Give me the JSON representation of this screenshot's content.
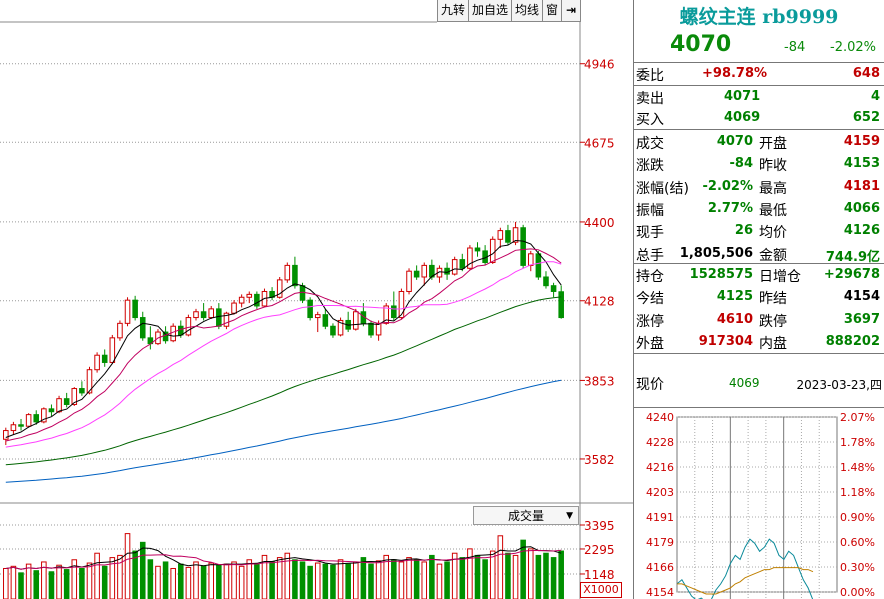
{
  "toolbar": {
    "buttons": [
      "九转",
      "加自选",
      "均线",
      "窗"
    ],
    "exit_icon": "exit-arrow-icon"
  },
  "volume_indicator": {
    "label": "成交量",
    "multiplier": "X1000"
  },
  "panel": {
    "title": "螺纹主连 rb9999",
    "price": "4070",
    "change": "-84",
    "change_pct": "-2.02%",
    "weibi": {
      "label": "委比",
      "value": "+98.78%",
      "diff": "648"
    },
    "sell": {
      "label": "卖出",
      "price": "4071",
      "qty": "4"
    },
    "buy": {
      "label": "买入",
      "price": "4069",
      "qty": "652"
    },
    "stats": [
      {
        "l1": "成交",
        "v1": "4070",
        "c1": "green",
        "l2": "开盘",
        "v2": "4159",
        "c2": "red"
      },
      {
        "l1": "涨跌",
        "v1": "-84",
        "c1": "green",
        "l2": "昨收",
        "v2": "4153",
        "c2": "green"
      },
      {
        "l1": "涨幅(结)",
        "v1": "-2.02%",
        "c1": "green",
        "l2": "最高",
        "v2": "4181",
        "c2": "red"
      },
      {
        "l1": "振幅",
        "v1": "2.77%",
        "c1": "green",
        "l2": "最低",
        "v2": "4066",
        "c2": "green"
      },
      {
        "l1": "现手",
        "v1": "26",
        "c1": "green",
        "l2": "均价",
        "v2": "4126",
        "c2": "green"
      },
      {
        "l1": "总手",
        "v1": "1,805,506",
        "c1": "black",
        "l2": "金额",
        "v2": "744.9亿",
        "c2": "green"
      }
    ],
    "stats2": [
      {
        "l1": "持仓",
        "v1": "1528575",
        "c1": "green",
        "l2": "日增仓",
        "v2": "+29678",
        "c2": "green"
      },
      {
        "l1": "今结",
        "v1": "4125",
        "c1": "green",
        "l2": "昨结",
        "v2": "4154",
        "c2": "black"
      },
      {
        "l1": "涨停",
        "v1": "4610",
        "c1": "red",
        "l2": "跌停",
        "v2": "3697",
        "c2": "green"
      },
      {
        "l1": "外盘",
        "v1": "917304",
        "c1": "red",
        "l2": "内盘",
        "v2": "888202",
        "c2": "green"
      }
    ],
    "current": {
      "label": "现价",
      "value": "4069",
      "date": "2023-03-23,四"
    }
  },
  "chart_data": [
    {
      "type": "candlestick",
      "y_ticks": [
        "4946",
        "4675",
        "4400",
        "4128",
        "3853",
        "3582"
      ],
      "ylim": [
        3430,
        5090
      ],
      "ohlc": [
        [
          3650,
          3690,
          3630,
          3680
        ],
        [
          3680,
          3710,
          3665,
          3700
        ],
        [
          3700,
          3720,
          3680,
          3695
        ],
        [
          3695,
          3740,
          3690,
          3735
        ],
        [
          3735,
          3750,
          3700,
          3710
        ],
        [
          3710,
          3760,
          3705,
          3755
        ],
        [
          3755,
          3770,
          3730,
          3745
        ],
        [
          3745,
          3800,
          3740,
          3790
        ],
        [
          3790,
          3810,
          3760,
          3770
        ],
        [
          3770,
          3830,
          3765,
          3825
        ],
        [
          3825,
          3850,
          3800,
          3810
        ],
        [
          3810,
          3900,
          3805,
          3890
        ],
        [
          3890,
          3950,
          3880,
          3940
        ],
        [
          3940,
          3960,
          3900,
          3915
        ],
        [
          3915,
          4010,
          3910,
          4000
        ],
        [
          4000,
          4060,
          3990,
          4050
        ],
        [
          4050,
          4140,
          4040,
          4130
        ],
        [
          4130,
          4145,
          4060,
          4070
        ],
        [
          4070,
          4090,
          3990,
          4000
        ],
        [
          4000,
          4040,
          3960,
          3980
        ],
        [
          3980,
          4030,
          3975,
          4020
        ],
        [
          4020,
          4040,
          3980,
          3990
        ],
        [
          3990,
          4050,
          3985,
          4040
        ],
        [
          4040,
          4060,
          4000,
          4010
        ],
        [
          4010,
          4080,
          4005,
          4070
        ],
        [
          4070,
          4100,
          4060,
          4090
        ],
        [
          4090,
          4120,
          4060,
          4070
        ],
        [
          4070,
          4110,
          4065,
          4100
        ],
        [
          4100,
          4120,
          4030,
          4040
        ],
        [
          4040,
          4090,
          4030,
          4085
        ],
        [
          4085,
          4130,
          4080,
          4120
        ],
        [
          4120,
          4150,
          4105,
          4140
        ],
        [
          4140,
          4160,
          4120,
          4150
        ],
        [
          4150,
          4160,
          4100,
          4110
        ],
        [
          4110,
          4170,
          4105,
          4160
        ],
        [
          4160,
          4175,
          4130,
          4140
        ],
        [
          4140,
          4210,
          4135,
          4200
        ],
        [
          4200,
          4260,
          4190,
          4250
        ],
        [
          4250,
          4280,
          4170,
          4180
        ],
        [
          4180,
          4190,
          4120,
          4130
        ],
        [
          4130,
          4140,
          4060,
          4070
        ],
        [
          4070,
          4090,
          4020,
          4080
        ],
        [
          4080,
          4100,
          4030,
          4040
        ],
        [
          4040,
          4050,
          4000,
          4010
        ],
        [
          4010,
          4070,
          4005,
          4060
        ],
        [
          4060,
          4090,
          4020,
          4030
        ],
        [
          4030,
          4100,
          4025,
          4090
        ],
        [
          4090,
          4120,
          4040,
          4050
        ],
        [
          4050,
          4060,
          4000,
          4010
        ],
        [
          4010,
          4060,
          3990,
          4050
        ],
        [
          4050,
          4120,
          4045,
          4110
        ],
        [
          4110,
          4160,
          4060,
          4070
        ],
        [
          4070,
          4170,
          4065,
          4160
        ],
        [
          4160,
          4240,
          4150,
          4230
        ],
        [
          4230,
          4250,
          4200,
          4210
        ],
        [
          4210,
          4260,
          4180,
          4250
        ],
        [
          4250,
          4270,
          4200,
          4210
        ],
        [
          4210,
          4250,
          4190,
          4240
        ],
        [
          4240,
          4260,
          4200,
          4220
        ],
        [
          4220,
          4280,
          4215,
          4270
        ],
        [
          4270,
          4290,
          4230,
          4240
        ],
        [
          4240,
          4320,
          4235,
          4310
        ],
        [
          4310,
          4330,
          4280,
          4300
        ],
        [
          4300,
          4320,
          4250,
          4260
        ],
        [
          4260,
          4350,
          4255,
          4340
        ],
        [
          4340,
          4380,
          4310,
          4370
        ],
        [
          4370,
          4390,
          4320,
          4330
        ],
        [
          4330,
          4400,
          4320,
          4380
        ],
        [
          4380,
          4390,
          4240,
          4250
        ],
        [
          4250,
          4300,
          4230,
          4290
        ],
        [
          4290,
          4300,
          4200,
          4210
        ],
        [
          4210,
          4230,
          4170,
          4180
        ],
        [
          4180,
          4190,
          4140,
          4160
        ],
        [
          4159,
          4181,
          4066,
          4070
        ]
      ],
      "ma_lines": [
        {
          "name": "MA5",
          "color": "#000000"
        },
        {
          "name": "MA10",
          "color": "#c00060"
        },
        {
          "name": "MA20",
          "color": "#ff40ff"
        },
        {
          "name": "MA60",
          "color": "#006400"
        },
        {
          "name": "MA120",
          "color": "#0060c0"
        }
      ]
    },
    {
      "type": "bar",
      "series_name": "成交量",
      "y_ticks": [
        "3395",
        "2295",
        "1148"
      ],
      "ylim": [
        0,
        3395
      ],
      "values": [
        1400,
        1500,
        1200,
        1600,
        1300,
        1700,
        1250,
        1550,
        1350,
        1800,
        1400,
        1650,
        2100,
        1500,
        1900,
        2000,
        3000,
        2200,
        2600,
        1800,
        1500,
        1700,
        1400,
        1600,
        1450,
        1700,
        1500,
        1650,
        1550,
        1600,
        1700,
        1500,
        1800,
        1600,
        2000,
        1700,
        1900,
        2100,
        1800,
        1700,
        1500,
        1650,
        1600,
        1550,
        1800,
        1600,
        1700,
        1900,
        1600,
        1750,
        2000,
        1800,
        1700,
        1900,
        1800,
        1700,
        2000,
        1600,
        1700,
        2100,
        1900,
        2300,
        2000,
        1800,
        2200,
        2900,
        2100,
        2000,
        2700,
        2300,
        2000,
        2100,
        1900,
        2200
      ]
    },
    {
      "type": "line",
      "series_name": "分时",
      "y_ticks_left": [
        "4240",
        "4228",
        "4216",
        "4203",
        "4191",
        "4179",
        "4166",
        "4154"
      ],
      "y_ticks_right": [
        "2.07%",
        "1.78%",
        "1.48%",
        "1.18%",
        "0.90%",
        "0.60%",
        "0.30%",
        "0.00%"
      ],
      "ylim": [
        4154,
        4240
      ],
      "price": [
        4158,
        4160,
        4156,
        4152,
        4150,
        4151,
        4149,
        4150,
        4155,
        4158,
        4162,
        4168,
        4172,
        4170,
        4176,
        4180,
        4178,
        4174,
        4176,
        4180,
        4178,
        4172,
        4170,
        4174,
        4172,
        4166,
        4160,
        4156,
        4150
      ],
      "avg": [
        4158,
        4158,
        4157,
        4156,
        4155,
        4154,
        4153,
        4153,
        4153,
        4154,
        4155,
        4156,
        4158,
        4159,
        4161,
        4162,
        4163,
        4164,
        4165,
        4165,
        4166,
        4166,
        4166,
        4166,
        4166,
        4166,
        4165,
        4165,
        4164
      ]
    }
  ]
}
